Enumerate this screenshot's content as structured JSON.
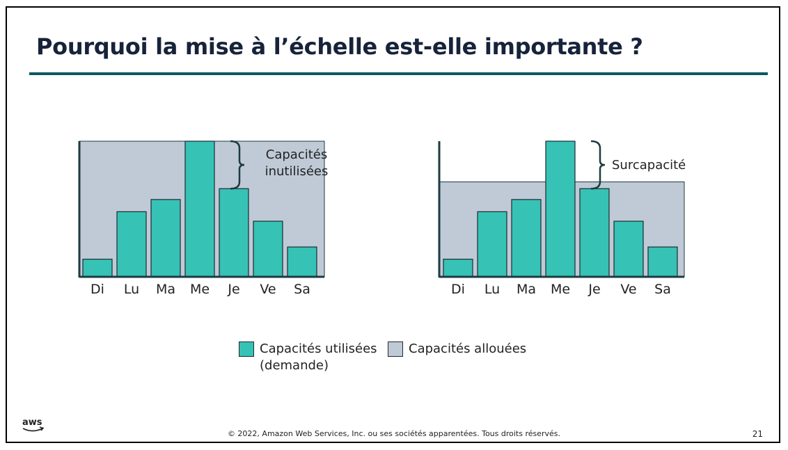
{
  "slide": {
    "title": "Pourquoi la mise à l’échelle est-elle importante ?",
    "footer": "© 2022, Amazon Web Services, Inc. ou ses sociétés apparentées. Tous droits réservés.",
    "page_number": "21",
    "logo_text": "aws",
    "logo_icon": "aws-smile-arrow-icon"
  },
  "colors": {
    "used": "#36c2b4",
    "allocated": "#bfcad6",
    "axis": "#1d3b40",
    "bar_stroke": "#1d2a33",
    "title": "#16233a",
    "rule": "#0e5760"
  },
  "legend": {
    "used_label_line1": "Capacités utilisées",
    "used_label_line2": "(demande)",
    "allocated_label": "Capacités allouées"
  },
  "chart_data": [
    {
      "type": "bar",
      "categories": [
        "Di",
        "Lu",
        "Ma",
        "Me",
        "Je",
        "Ve",
        "Sa"
      ],
      "series": [
        {
          "name": "Capacités utilisées (demande)",
          "values": [
            13,
            48,
            57,
            100,
            65,
            41,
            22
          ]
        }
      ],
      "allocated_capacity": 100,
      "ylim": [
        0,
        100
      ],
      "annotation": {
        "text_lines": [
          "Capacités",
          "inutilisées"
        ],
        "from": 65,
        "to": 100
      }
    },
    {
      "type": "bar",
      "categories": [
        "Di",
        "Lu",
        "Ma",
        "Me",
        "Je",
        "Ve",
        "Sa"
      ],
      "series": [
        {
          "name": "Capacités utilisées (demande)",
          "values": [
            13,
            48,
            57,
            100,
            65,
            41,
            22
          ]
        }
      ],
      "allocated_capacity": 70,
      "ylim": [
        0,
        100
      ],
      "annotation": {
        "text_lines": [
          "Surcapacité"
        ],
        "from": 65,
        "to": 100
      }
    }
  ]
}
